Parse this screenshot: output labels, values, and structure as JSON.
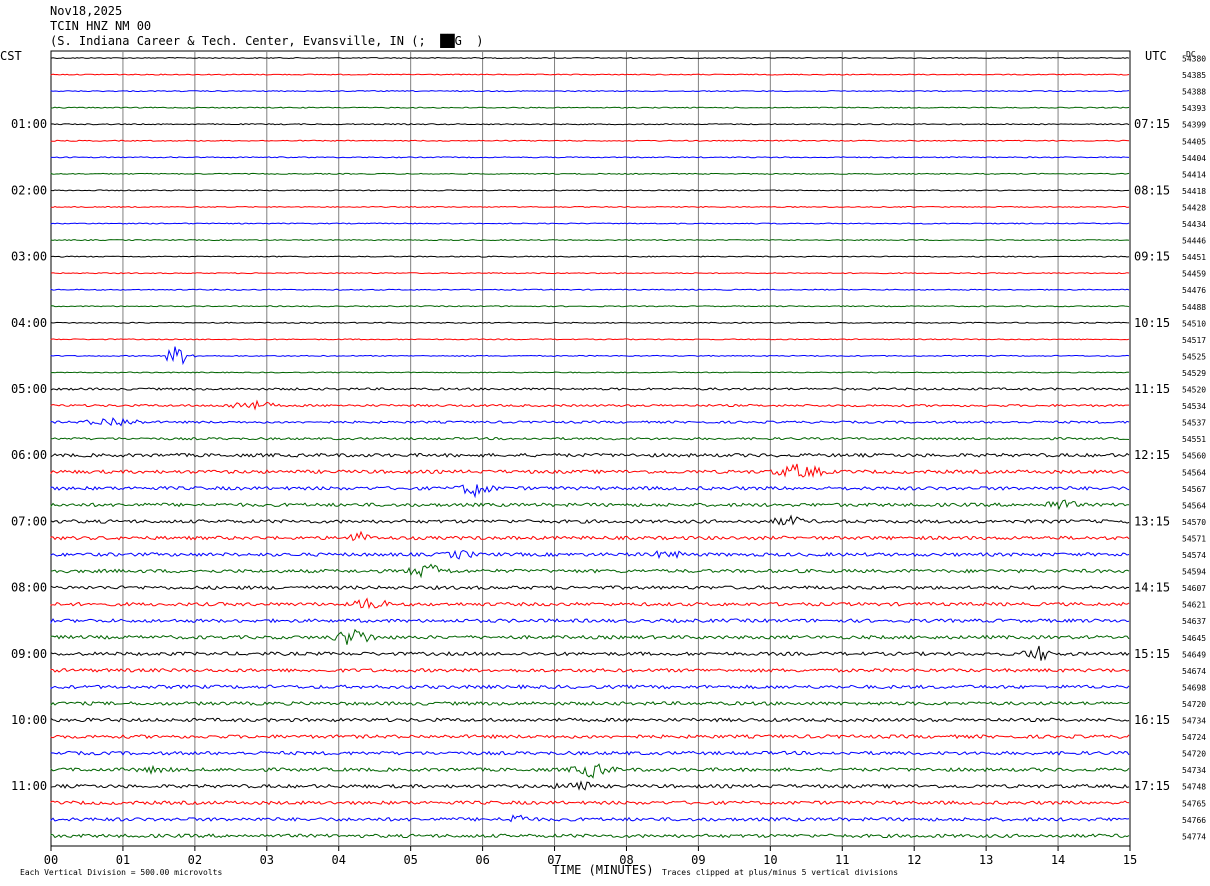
{
  "header": {
    "date": "Nov18,2025",
    "station": "TCIN HNZ NM 00",
    "location": "(S. Indiana Career & Tech. Center, Evansville, IN (;  ██G  )"
  },
  "chart_data": {
    "type": "line",
    "left_timezone": "CST",
    "right_timezone": "UTC",
    "dc_label": "DC",
    "xlabel": "TIME (MINUTES)",
    "xlim": [
      0,
      15
    ],
    "x_ticks": [
      "00",
      "01",
      "02",
      "03",
      "04",
      "05",
      "06",
      "07",
      "08",
      "09",
      "10",
      "11",
      "12",
      "13",
      "14",
      "15"
    ],
    "left_hour_labels": [
      "01:00",
      "02:00",
      "03:00",
      "04:00",
      "05:00",
      "06:00",
      "07:00",
      "08:00",
      "09:00",
      "10:00",
      "11:00"
    ],
    "right_hour_labels": [
      "07:15",
      "08:15",
      "09:15",
      "10:15",
      "11:15",
      "12:15",
      "13:15",
      "14:15",
      "15:15",
      "16:15",
      "17:15"
    ],
    "trace_colors": [
      "#000000",
      "#ff0000",
      "#0000ff",
      "#006400"
    ],
    "dc_offsets": [
      54380,
      54385,
      54388,
      54393,
      54399,
      54405,
      54404,
      54414,
      54418,
      54428,
      54434,
      54446,
      54451,
      54459,
      54476,
      54488,
      54510,
      54517,
      54525,
      54529,
      54520,
      54534,
      54537,
      54551,
      54560,
      54564,
      54567,
      54564,
      54570,
      54571,
      54574,
      54594,
      54607,
      54621,
      54637,
      54645,
      54649,
      54674,
      54698,
      54720,
      54734,
      54724,
      54720,
      54734,
      54748,
      54765,
      54766,
      54774
    ],
    "footer_left": "Each Vertical Division =  500.00 microvolts",
    "footer_right": "Traces clipped at plus/minus 5 vertical divisions"
  }
}
